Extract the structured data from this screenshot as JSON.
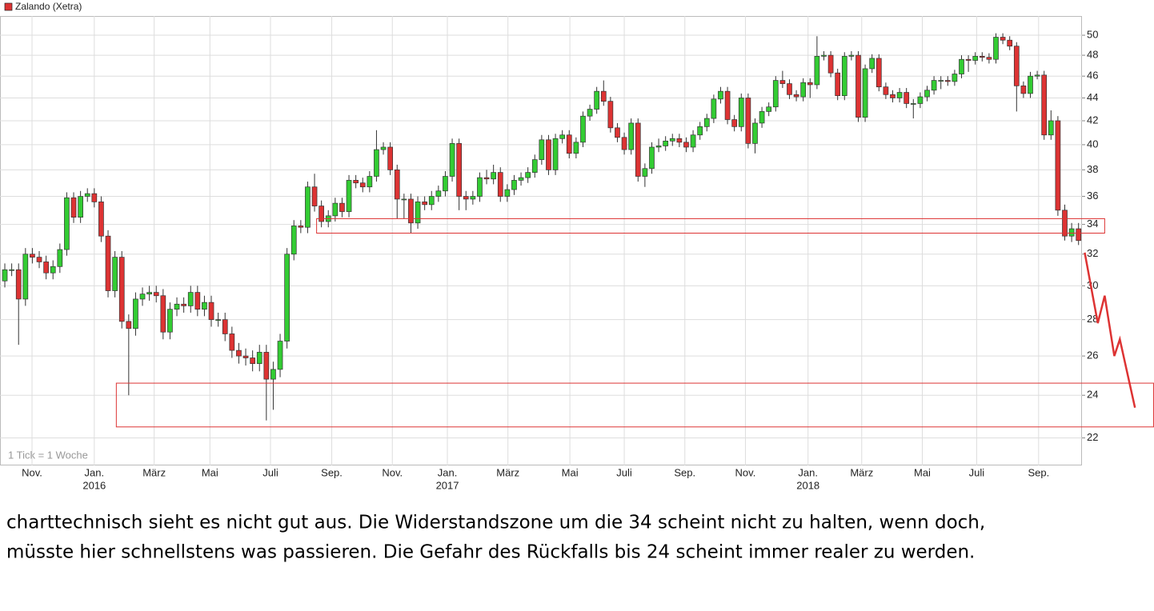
{
  "chart_data": {
    "type": "candlestick",
    "title": "Zalando (Xetra)",
    "color": "#dd3333",
    "up_color": "#33cc33",
    "down_color": "#dd3333",
    "note": "1 Tick = 1 Woche",
    "log_scale": true,
    "grid": true,
    "ylim": [
      20.8,
      52
    ],
    "yticks": [
      22,
      24,
      26,
      28,
      30,
      32,
      34,
      36,
      38,
      40,
      42,
      44,
      46,
      48,
      50
    ],
    "xlim": [
      -0.7,
      156.5
    ],
    "xticks": [
      {
        "value": 3.95,
        "label": "Nov."
      },
      {
        "value": 13.0,
        "label": "Jan."
      },
      {
        "value": 21.7,
        "label": "März"
      },
      {
        "value": 29.8,
        "label": "Mai"
      },
      {
        "value": 38.6,
        "label": "Juli"
      },
      {
        "value": 47.5,
        "label": "Sep."
      },
      {
        "value": 56.3,
        "label": "Nov."
      },
      {
        "value": 64.3,
        "label": "Jan."
      },
      {
        "value": 73.1,
        "label": "März"
      },
      {
        "value": 82.1,
        "label": "Mai"
      },
      {
        "value": 90.0,
        "label": "Juli"
      },
      {
        "value": 98.8,
        "label": "Sep."
      },
      {
        "value": 107.6,
        "label": "Nov."
      },
      {
        "value": 116.7,
        "label": "Jan."
      },
      {
        "value": 124.5,
        "label": "März"
      },
      {
        "value": 133.3,
        "label": "Mai"
      },
      {
        "value": 141.2,
        "label": "Juli"
      },
      {
        "value": 150.2,
        "label": "Sep."
      }
    ],
    "years": [
      {
        "value": 13.0,
        "label": "2016"
      },
      {
        "value": 64.3,
        "label": "2017"
      },
      {
        "value": 116.7,
        "label": "2018"
      }
    ],
    "zones": [
      {
        "x": [
          45.3,
          159.8
        ],
        "y": [
          33.4,
          34.4
        ]
      },
      {
        "x": [
          16.2,
          166.9
        ],
        "y": [
          22.5,
          24.6
        ]
      }
    ],
    "arrow": {
      "x": [
        156.9,
        158.8,
        159.8,
        161.2,
        162.0,
        164.2
      ],
      "y": [
        32.1,
        27.8,
        29.4,
        26.0,
        26.9,
        23.4
      ]
    },
    "candles": [
      [
        30.3,
        31.4,
        29.9,
        31.0
      ],
      [
        31.0,
        31.4,
        30.6,
        31.0
      ],
      [
        31.0,
        31.4,
        26.6,
        29.2
      ],
      [
        29.2,
        32.4,
        28.8,
        32.0
      ],
      [
        32.0,
        32.4,
        31.4,
        31.8
      ],
      [
        31.8,
        32.2,
        31.1,
        31.5
      ],
      [
        31.5,
        31.9,
        30.4,
        30.8
      ],
      [
        30.8,
        31.6,
        30.4,
        31.2
      ],
      [
        31.2,
        32.7,
        30.8,
        32.3
      ],
      [
        32.3,
        36.3,
        31.9,
        35.9
      ],
      [
        35.9,
        36.3,
        34.1,
        34.5
      ],
      [
        34.5,
        36.4,
        34.1,
        36.0
      ],
      [
        36.0,
        36.6,
        35.6,
        36.2
      ],
      [
        36.2,
        36.6,
        35.2,
        35.6
      ],
      [
        35.6,
        36.0,
        32.8,
        33.2
      ],
      [
        33.2,
        33.6,
        29.3,
        29.7
      ],
      [
        29.7,
        32.2,
        29.3,
        31.8
      ],
      [
        31.8,
        32.2,
        27.5,
        27.9
      ],
      [
        27.9,
        28.3,
        24.0,
        27.5
      ],
      [
        27.5,
        29.6,
        27.1,
        29.2
      ],
      [
        29.2,
        29.9,
        28.8,
        29.5
      ],
      [
        29.5,
        30.0,
        29.1,
        29.6
      ],
      [
        29.6,
        30.0,
        29.0,
        29.4
      ],
      [
        29.4,
        29.8,
        26.9,
        27.3
      ],
      [
        27.3,
        29.0,
        26.9,
        28.6
      ],
      [
        28.6,
        29.3,
        28.2,
        28.9
      ],
      [
        28.9,
        29.3,
        28.4,
        28.8
      ],
      [
        28.8,
        30.0,
        28.4,
        29.6
      ],
      [
        29.6,
        30.0,
        28.2,
        28.6
      ],
      [
        28.6,
        29.4,
        28.2,
        29.0
      ],
      [
        29.0,
        29.4,
        27.6,
        28.0
      ],
      [
        28.0,
        28.4,
        27.6,
        28.0
      ],
      [
        28.0,
        28.4,
        26.8,
        27.2
      ],
      [
        27.2,
        27.6,
        25.9,
        26.3
      ],
      [
        26.3,
        26.7,
        25.6,
        26.0
      ],
      [
        26.0,
        26.4,
        25.5,
        25.9
      ],
      [
        25.9,
        26.3,
        25.2,
        25.6
      ],
      [
        25.6,
        26.6,
        25.2,
        26.2
      ],
      [
        26.2,
        26.6,
        22.8,
        24.8
      ],
      [
        24.8,
        25.7,
        23.3,
        25.3
      ],
      [
        25.3,
        27.2,
        24.9,
        26.8
      ],
      [
        26.8,
        32.4,
        26.4,
        32.0
      ],
      [
        32.0,
        34.3,
        31.6,
        33.9
      ],
      [
        33.9,
        34.3,
        33.4,
        33.8
      ],
      [
        33.8,
        37.1,
        33.4,
        36.7
      ],
      [
        36.7,
        37.7,
        34.9,
        35.3
      ],
      [
        35.3,
        35.7,
        33.8,
        34.2
      ],
      [
        34.2,
        35.0,
        33.8,
        34.6
      ],
      [
        34.6,
        35.9,
        34.2,
        35.5
      ],
      [
        35.5,
        35.9,
        34.5,
        34.9
      ],
      [
        34.9,
        37.6,
        34.5,
        37.2
      ],
      [
        37.2,
        37.6,
        36.6,
        37.0
      ],
      [
        37.0,
        37.4,
        36.3,
        36.7
      ],
      [
        36.7,
        37.9,
        36.3,
        37.5
      ],
      [
        37.5,
        41.2,
        37.1,
        39.6
      ],
      [
        39.6,
        40.2,
        39.2,
        39.8
      ],
      [
        39.8,
        40.2,
        37.6,
        38.0
      ],
      [
        38.0,
        38.4,
        34.4,
        35.8
      ],
      [
        35.8,
        36.2,
        34.4,
        35.8
      ],
      [
        35.8,
        36.2,
        33.4,
        34.1
      ],
      [
        34.1,
        36.0,
        33.7,
        35.6
      ],
      [
        35.6,
        36.0,
        35.0,
        35.4
      ],
      [
        35.4,
        36.4,
        35.0,
        36.0
      ],
      [
        36.0,
        36.8,
        35.6,
        36.4
      ],
      [
        36.4,
        37.9,
        36.0,
        37.5
      ],
      [
        37.5,
        40.5,
        37.1,
        40.1
      ],
      [
        40.1,
        40.5,
        35.0,
        36.0
      ],
      [
        36.0,
        36.4,
        35.0,
        35.8
      ],
      [
        35.8,
        36.4,
        35.4,
        36.0
      ],
      [
        36.0,
        37.8,
        35.6,
        37.4
      ],
      [
        37.4,
        38.0,
        36.9,
        37.3
      ],
      [
        37.3,
        38.4,
        36.9,
        37.8
      ],
      [
        37.8,
        38.2,
        35.6,
        36.0
      ],
      [
        36.0,
        36.9,
        35.6,
        36.5
      ],
      [
        36.5,
        37.6,
        36.1,
        37.2
      ],
      [
        37.2,
        37.8,
        36.8,
        37.4
      ],
      [
        37.4,
        38.2,
        37.0,
        37.8
      ],
      [
        37.8,
        39.2,
        37.4,
        38.8
      ],
      [
        38.8,
        40.8,
        38.4,
        40.4
      ],
      [
        40.4,
        40.8,
        37.6,
        38.0
      ],
      [
        38.0,
        40.9,
        37.6,
        40.5
      ],
      [
        40.5,
        41.2,
        40.1,
        40.8
      ],
      [
        40.8,
        41.2,
        38.9,
        39.3
      ],
      [
        39.3,
        40.6,
        38.9,
        40.2
      ],
      [
        40.2,
        42.8,
        39.8,
        42.4
      ],
      [
        42.4,
        43.4,
        42.0,
        43.0
      ],
      [
        43.0,
        45.0,
        42.6,
        44.6
      ],
      [
        44.6,
        45.6,
        43.3,
        43.7
      ],
      [
        43.7,
        44.1,
        41.0,
        41.4
      ],
      [
        41.4,
        41.8,
        40.2,
        40.6
      ],
      [
        40.6,
        41.0,
        39.2,
        39.6
      ],
      [
        39.6,
        42.2,
        39.2,
        41.8
      ],
      [
        41.8,
        42.2,
        37.1,
        37.5
      ],
      [
        37.5,
        38.5,
        36.7,
        38.1
      ],
      [
        38.1,
        40.2,
        37.7,
        39.8
      ],
      [
        39.8,
        40.5,
        39.4,
        39.9
      ],
      [
        39.9,
        40.7,
        39.5,
        40.3
      ],
      [
        40.3,
        40.9,
        39.9,
        40.5
      ],
      [
        40.5,
        40.9,
        39.8,
        40.2
      ],
      [
        40.2,
        40.6,
        39.4,
        39.8
      ],
      [
        39.8,
        41.2,
        39.4,
        40.8
      ],
      [
        40.8,
        41.9,
        40.4,
        41.5
      ],
      [
        41.5,
        42.6,
        41.1,
        42.2
      ],
      [
        42.2,
        44.3,
        41.8,
        43.9
      ],
      [
        43.9,
        45.0,
        43.5,
        44.6
      ],
      [
        44.6,
        45.0,
        41.7,
        42.1
      ],
      [
        42.1,
        42.5,
        41.1,
        41.5
      ],
      [
        41.5,
        44.4,
        41.1,
        44.0
      ],
      [
        44.0,
        44.4,
        39.7,
        40.1
      ],
      [
        40.1,
        42.2,
        39.3,
        41.8
      ],
      [
        41.8,
        43.2,
        41.4,
        42.8
      ],
      [
        42.8,
        43.6,
        42.4,
        43.2
      ],
      [
        43.2,
        46.0,
        42.8,
        45.6
      ],
      [
        45.6,
        46.5,
        44.9,
        45.3
      ],
      [
        45.3,
        45.7,
        43.9,
        44.3
      ],
      [
        44.3,
        44.7,
        43.7,
        44.1
      ],
      [
        44.1,
        45.8,
        43.7,
        45.4
      ],
      [
        45.4,
        45.8,
        44.0,
        45.2
      ],
      [
        45.2,
        49.9,
        44.8,
        47.9
      ],
      [
        47.9,
        48.4,
        47.5,
        48.0
      ],
      [
        48.0,
        48.4,
        45.9,
        46.3
      ],
      [
        46.3,
        46.7,
        43.8,
        44.2
      ],
      [
        44.2,
        48.3,
        43.8,
        47.9
      ],
      [
        47.9,
        48.4,
        47.5,
        48.0
      ],
      [
        48.0,
        48.4,
        41.9,
        42.3
      ],
      [
        42.3,
        47.1,
        41.9,
        46.7
      ],
      [
        46.7,
        48.1,
        46.3,
        47.7
      ],
      [
        47.7,
        48.1,
        44.6,
        45.0
      ],
      [
        45.0,
        45.4,
        43.9,
        44.3
      ],
      [
        44.3,
        44.7,
        43.6,
        44.0
      ],
      [
        44.0,
        44.9,
        43.6,
        44.5
      ],
      [
        44.5,
        44.9,
        43.1,
        43.5
      ],
      [
        43.5,
        43.9,
        42.2,
        43.5
      ],
      [
        43.5,
        44.5,
        43.1,
        44.1
      ],
      [
        44.1,
        45.1,
        43.7,
        44.7
      ],
      [
        44.7,
        46.0,
        44.3,
        45.6
      ],
      [
        45.6,
        46.0,
        44.8,
        45.6
      ],
      [
        45.6,
        46.0,
        45.1,
        45.5
      ],
      [
        45.5,
        46.6,
        45.1,
        46.2
      ],
      [
        46.2,
        48.0,
        45.8,
        47.6
      ],
      [
        47.6,
        48.0,
        46.4,
        47.5
      ],
      [
        47.5,
        48.3,
        47.1,
        47.9
      ],
      [
        47.9,
        48.3,
        47.4,
        47.8
      ],
      [
        47.8,
        48.2,
        47.2,
        47.6
      ],
      [
        47.6,
        50.2,
        47.2,
        49.8
      ],
      [
        49.8,
        50.2,
        49.1,
        49.5
      ],
      [
        49.5,
        49.9,
        48.5,
        48.9
      ],
      [
        48.9,
        49.3,
        42.8,
        45.1
      ],
      [
        45.1,
        45.5,
        44.0,
        44.4
      ],
      [
        44.4,
        46.4,
        44.0,
        46.0
      ],
      [
        46.0,
        46.5,
        45.7,
        46.1
      ],
      [
        46.1,
        46.5,
        40.4,
        40.8
      ],
      [
        40.8,
        42.9,
        40.4,
        42.0
      ],
      [
        42.0,
        42.4,
        34.6,
        35.0
      ],
      [
        35.0,
        35.4,
        32.9,
        33.2
      ],
      [
        33.2,
        34.1,
        32.8,
        33.7
      ],
      [
        33.7,
        34.1,
        32.6,
        32.9
      ]
    ]
  },
  "comment": [
    "charttechnisch sieht es nicht gut aus. Die Widerstandszone um die 34 scheint nicht zu halten, wenn doch,",
    "müsste hier schnellstens was passieren. Die Gefahr des Rückfalls bis 24 scheint immer realer zu werden."
  ]
}
